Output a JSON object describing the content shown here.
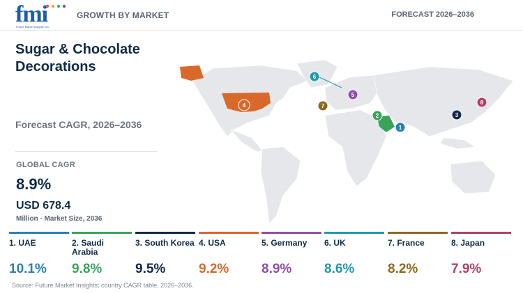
{
  "header": {
    "logo_text": "fmi",
    "logo_subtext": "Future Market Insights, Inc.",
    "left_label": "GROWTH BY MARKET",
    "right_label": "FORECAST 2026–2036"
  },
  "panel": {
    "title": "Sugar & Chocolate Decorations",
    "subtitle": "Forecast CAGR, 2026–2036",
    "global_label": "GLOBAL CAGR",
    "global_value": "8.9%",
    "market_size": "USD 678.4",
    "market_note": "Million · Market Size, 2036"
  },
  "map": {
    "land_color": "#e5e7ea",
    "highlight_color": "#d9682b",
    "markers": [
      {
        "rank": "1",
        "country": "UAE",
        "color": "#2a7fb8"
      },
      {
        "rank": "2",
        "country": "Saudi Arabia",
        "color": "#3aa35a"
      },
      {
        "rank": "3",
        "country": "South Korea",
        "color": "#13294a"
      },
      {
        "rank": "4",
        "country": "USA",
        "color": "#d9682b"
      },
      {
        "rank": "5",
        "country": "Germany",
        "color": "#8c4fa6"
      },
      {
        "rank": "6",
        "country": "UK",
        "color": "#2398a8"
      },
      {
        "rank": "7",
        "country": "France",
        "color": "#8a6a1e"
      },
      {
        "rank": "8",
        "country": "Japan",
        "color": "#b23f64"
      }
    ]
  },
  "cards": [
    {
      "label": "1. UAE",
      "value": "10.1%",
      "color": "#2a7fb8"
    },
    {
      "label": "2. Saudi Arabia",
      "value": "9.8%",
      "color": "#3aa35a"
    },
    {
      "label": "3. South Korea",
      "value": "9.5%",
      "color": "#13294a"
    },
    {
      "label": "4. USA",
      "value": "9.2%",
      "color": "#d9682b"
    },
    {
      "label": "5. Germany",
      "value": "8.9%",
      "color": "#8c4fa6"
    },
    {
      "label": "6. UK",
      "value": "8.6%",
      "color": "#2398a8"
    },
    {
      "label": "7. France",
      "value": "8.2%",
      "color": "#8a6a1e"
    },
    {
      "label": "8. Japan",
      "value": "7.9%",
      "color": "#b23f64"
    }
  ],
  "source": "Source: Future Market Insights; country CAGR table, 2026–2036."
}
